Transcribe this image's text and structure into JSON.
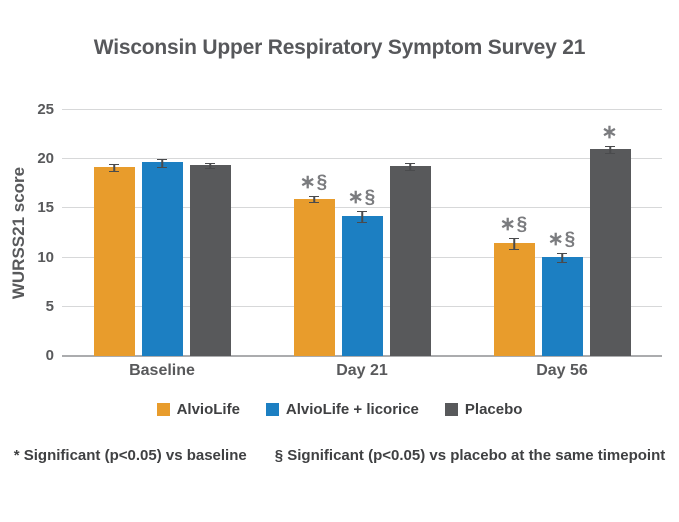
{
  "title": "Wisconsin Upper Respiratory Symptom Survey 21",
  "chart_data": {
    "type": "bar",
    "title": "Wisconsin Upper Respiratory Symptom Survey 21",
    "xlabel": "",
    "ylabel": "WURSS21 score",
    "ylim": [
      0,
      25
    ],
    "yticks": [
      0,
      5,
      10,
      15,
      20,
      25
    ],
    "grid": true,
    "legend_position": "bottom",
    "categories": [
      "Baseline",
      "Day 21",
      "Day 56"
    ],
    "series": [
      {
        "name": "AlvioLife",
        "color": "#E89C2C",
        "values": [
          19.2,
          16.0,
          11.5
        ],
        "errors": [
          0.3,
          0.3,
          0.5
        ],
        "annotations": [
          "",
          "∗§",
          "∗§"
        ]
      },
      {
        "name": "AlvioLife + licorice",
        "color": "#1C7FC2",
        "values": [
          19.7,
          14.2,
          10.1
        ],
        "errors": [
          0.35,
          0.5,
          0.4
        ],
        "annotations": [
          "",
          "∗§",
          "∗§"
        ]
      },
      {
        "name": "Placebo",
        "color": "#58595B",
        "values": [
          19.4,
          19.3,
          21.0
        ],
        "errors": [
          0.2,
          0.3,
          0.3
        ],
        "annotations": [
          "",
          "",
          "∗"
        ]
      }
    ]
  },
  "footnotes": {
    "asterisk": "* Significant (p<0.05) vs baseline",
    "section": "§ Significant (p<0.05) vs placebo at the same timepoint"
  },
  "colors": {
    "title_text": "#57585B",
    "axis_text": "#58595B",
    "annotation_text": "#7B7C7F",
    "legend_text": "#3F4042",
    "gridline": "#D7D8D9",
    "axis_line": "#ABACAE",
    "error_bar": "#4A4B4D",
    "background": "#FFFFFF"
  }
}
